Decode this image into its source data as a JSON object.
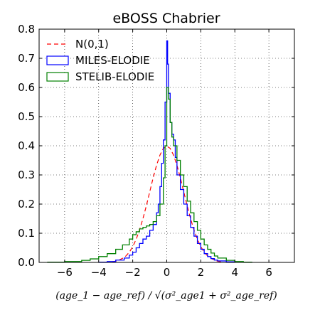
{
  "chart_data": {
    "type": "area",
    "title": "eBOSS Chabrier",
    "xlabel": "(age_1 − age_ref) / √(σ²_age1 + σ²_age_ref)",
    "ylabel": "",
    "xlim": [
      -7.5,
      7.5
    ],
    "ylim": [
      0,
      0.8
    ],
    "xticks": [
      -6,
      -4,
      -2,
      0,
      2,
      4,
      6
    ],
    "xtick_labels": [
      "−6",
      "−4",
      "−2",
      "0",
      "2",
      "4",
      "6"
    ],
    "yticks": [
      0,
      0.1,
      0.2,
      0.3,
      0.4,
      0.5,
      0.6,
      0.7,
      0.8
    ],
    "ytick_labels": [
      "0.0",
      "0.1",
      "0.2",
      "0.3",
      "0.4",
      "0.5",
      "0.6",
      "0.7",
      "0.8"
    ],
    "grid": true,
    "legend_position": "top-left",
    "series": [
      {
        "name": "N(0,1)",
        "style": "dashed-line",
        "color": "#ff0000",
        "x": [
          -3.2,
          -3.0,
          -2.8,
          -2.6,
          -2.4,
          -2.2,
          -2.0,
          -1.8,
          -1.6,
          -1.4,
          -1.2,
          -1.0,
          -0.8,
          -0.6,
          -0.4,
          -0.2,
          0.0,
          0.2,
          0.4,
          0.6,
          0.8,
          1.0,
          1.2,
          1.4,
          1.6,
          1.8,
          2.0,
          2.2,
          2.4,
          2.6,
          2.8,
          3.0,
          3.2
        ],
        "y": [
          0.002,
          0.004,
          0.008,
          0.014,
          0.022,
          0.035,
          0.054,
          0.079,
          0.111,
          0.15,
          0.194,
          0.242,
          0.29,
          0.333,
          0.368,
          0.391,
          0.399,
          0.391,
          0.368,
          0.333,
          0.29,
          0.242,
          0.194,
          0.15,
          0.111,
          0.079,
          0.054,
          0.035,
          0.022,
          0.014,
          0.008,
          0.004,
          0.002
        ]
      },
      {
        "name": "MILES-ELODIE",
        "style": "step",
        "color": "#0000ff",
        "x": [
          -4.0,
          -3.5,
          -3.0,
          -2.5,
          -2.2,
          -2.0,
          -1.8,
          -1.6,
          -1.4,
          -1.2,
          -1.0,
          -0.8,
          -0.6,
          -0.5,
          -0.4,
          -0.3,
          -0.2,
          -0.1,
          0.0,
          0.05,
          0.1,
          0.2,
          0.3,
          0.4,
          0.5,
          0.6,
          0.8,
          1.0,
          1.2,
          1.4,
          1.6,
          1.8,
          2.0,
          2.2,
          2.4,
          2.6,
          2.8,
          3.0,
          3.5,
          4.0
        ],
        "y": [
          0.001,
          0.003,
          0.008,
          0.015,
          0.025,
          0.035,
          0.05,
          0.065,
          0.08,
          0.09,
          0.11,
          0.13,
          0.17,
          0.2,
          0.26,
          0.34,
          0.42,
          0.55,
          0.76,
          0.68,
          0.58,
          0.48,
          0.44,
          0.42,
          0.36,
          0.3,
          0.25,
          0.2,
          0.16,
          0.12,
          0.09,
          0.065,
          0.045,
          0.03,
          0.02,
          0.013,
          0.008,
          0.005,
          0.002,
          0.0
        ]
      },
      {
        "name": "STELIB-ELODIE",
        "style": "step",
        "color": "#008000",
        "x": [
          -7.0,
          -6.0,
          -5.0,
          -4.5,
          -4.0,
          -3.5,
          -3.0,
          -2.6,
          -2.2,
          -2.0,
          -1.8,
          -1.6,
          -1.4,
          -1.2,
          -1.0,
          -0.8,
          -0.6,
          -0.4,
          -0.2,
          -0.1,
          0.0,
          0.1,
          0.2,
          0.3,
          0.4,
          0.6,
          0.8,
          1.0,
          1.2,
          1.4,
          1.6,
          1.8,
          2.0,
          2.2,
          2.4,
          2.6,
          2.8,
          3.0,
          3.5,
          4.0,
          4.5,
          5.0
        ],
        "y": [
          0.001,
          0.003,
          0.007,
          0.012,
          0.02,
          0.03,
          0.045,
          0.06,
          0.08,
          0.095,
          0.105,
          0.115,
          0.12,
          0.125,
          0.13,
          0.14,
          0.16,
          0.2,
          0.29,
          0.4,
          0.6,
          0.56,
          0.48,
          0.43,
          0.4,
          0.35,
          0.3,
          0.26,
          0.21,
          0.17,
          0.14,
          0.11,
          0.08,
          0.06,
          0.045,
          0.032,
          0.022,
          0.015,
          0.007,
          0.003,
          0.001,
          0.0
        ]
      }
    ]
  }
}
